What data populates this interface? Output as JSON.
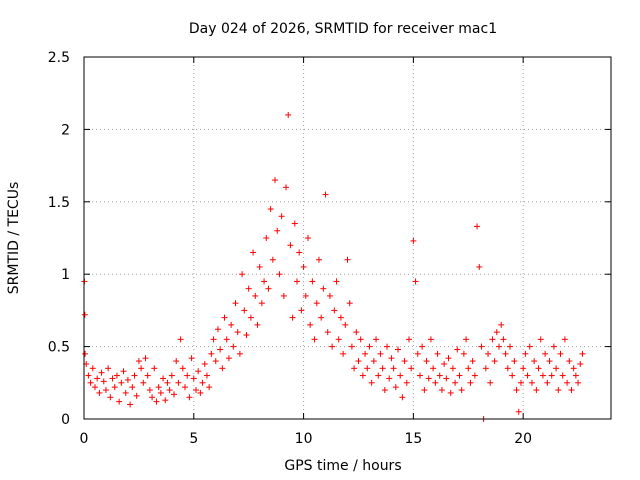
{
  "chart_data": {
    "type": "scatter",
    "title": "Day 024 of 2026, SRMTID for receiver mac1",
    "xlabel": "GPS time / hours",
    "ylabel": "SRMTID / TECUs",
    "xlim": [
      0,
      24
    ],
    "ylim": [
      0,
      2.5
    ],
    "xticks": [
      0,
      5,
      10,
      15,
      20
    ],
    "xtick_labels": [
      "0",
      "5",
      "10",
      "15",
      "20"
    ],
    "yticks": [
      0,
      0.5,
      1,
      1.5,
      2,
      2.5
    ],
    "ytick_labels": [
      "0",
      "0.5",
      "1",
      "1.5",
      "2",
      "2.5"
    ],
    "grid": true,
    "marker": "+",
    "series": [
      {
        "name": "SRMTID",
        "color": "#ff0000",
        "points": [
          [
            0.02,
            0.95
          ],
          [
            0.04,
            0.72
          ],
          [
            0.05,
            0.45
          ],
          [
            0.1,
            0.38
          ],
          [
            0.2,
            0.3
          ],
          [
            0.3,
            0.25
          ],
          [
            0.4,
            0.35
          ],
          [
            0.5,
            0.22
          ],
          [
            0.6,
            0.28
          ],
          [
            0.7,
            0.18
          ],
          [
            0.8,
            0.32
          ],
          [
            0.9,
            0.26
          ],
          [
            1.0,
            0.2
          ],
          [
            1.1,
            0.35
          ],
          [
            1.2,
            0.15
          ],
          [
            1.3,
            0.28
          ],
          [
            1.4,
            0.22
          ],
          [
            1.5,
            0.3
          ],
          [
            1.6,
            0.12
          ],
          [
            1.7,
            0.25
          ],
          [
            1.8,
            0.33
          ],
          [
            1.9,
            0.18
          ],
          [
            2.0,
            0.27
          ],
          [
            2.1,
            0.1
          ],
          [
            2.2,
            0.22
          ],
          [
            2.3,
            0.3
          ],
          [
            2.4,
            0.16
          ],
          [
            2.5,
            0.4
          ],
          [
            2.6,
            0.35
          ],
          [
            2.7,
            0.25
          ],
          [
            2.8,
            0.42
          ],
          [
            2.9,
            0.3
          ],
          [
            3.0,
            0.2
          ],
          [
            3.1,
            0.15
          ],
          [
            3.2,
            0.35
          ],
          [
            3.3,
            0.12
          ],
          [
            3.4,
            0.22
          ],
          [
            3.5,
            0.18
          ],
          [
            3.6,
            0.28
          ],
          [
            3.7,
            0.13
          ],
          [
            3.8,
            0.25
          ],
          [
            3.9,
            0.2
          ],
          [
            4.0,
            0.3
          ],
          [
            4.1,
            0.17
          ],
          [
            4.2,
            0.4
          ],
          [
            4.3,
            0.25
          ],
          [
            4.4,
            0.55
          ],
          [
            4.5,
            0.35
          ],
          [
            4.6,
            0.22
          ],
          [
            4.7,
            0.3
          ],
          [
            4.8,
            0.15
          ],
          [
            4.9,
            0.42
          ],
          [
            5.0,
            0.28
          ],
          [
            5.1,
            0.2
          ],
          [
            5.2,
            0.33
          ],
          [
            5.3,
            0.18
          ],
          [
            5.4,
            0.25
          ],
          [
            5.5,
            0.38
          ],
          [
            5.6,
            0.3
          ],
          [
            5.7,
            0.22
          ],
          [
            5.8,
            0.45
          ],
          [
            5.9,
            0.55
          ],
          [
            6.0,
            0.4
          ],
          [
            6.1,
            0.62
          ],
          [
            6.2,
            0.48
          ],
          [
            6.3,
            0.35
          ],
          [
            6.4,
            0.7
          ],
          [
            6.5,
            0.55
          ],
          [
            6.6,
            0.42
          ],
          [
            6.7,
            0.65
          ],
          [
            6.8,
            0.5
          ],
          [
            6.9,
            0.8
          ],
          [
            7.0,
            0.6
          ],
          [
            7.1,
            0.45
          ],
          [
            7.2,
            1.0
          ],
          [
            7.3,
            0.75
          ],
          [
            7.4,
            0.58
          ],
          [
            7.5,
            0.9
          ],
          [
            7.6,
            0.7
          ],
          [
            7.7,
            1.15
          ],
          [
            7.8,
            0.85
          ],
          [
            7.9,
            0.65
          ],
          [
            8.0,
            1.05
          ],
          [
            8.1,
            0.8
          ],
          [
            8.2,
            0.95
          ],
          [
            8.3,
            1.25
          ],
          [
            8.4,
            0.9
          ],
          [
            8.5,
            1.45
          ],
          [
            8.6,
            1.1
          ],
          [
            8.7,
            1.65
          ],
          [
            8.8,
            1.3
          ],
          [
            8.9,
            1.0
          ],
          [
            9.0,
            1.4
          ],
          [
            9.1,
            0.85
          ],
          [
            9.2,
            1.6
          ],
          [
            9.3,
            2.1
          ],
          [
            9.4,
            1.2
          ],
          [
            9.5,
            0.7
          ],
          [
            9.6,
            1.35
          ],
          [
            9.7,
            0.95
          ],
          [
            9.8,
            1.15
          ],
          [
            9.9,
            0.75
          ],
          [
            10.0,
            1.05
          ],
          [
            10.1,
            0.85
          ],
          [
            10.2,
            1.25
          ],
          [
            10.3,
            0.65
          ],
          [
            10.4,
            0.95
          ],
          [
            10.5,
            0.55
          ],
          [
            10.6,
            0.8
          ],
          [
            10.7,
            1.1
          ],
          [
            10.8,
            0.7
          ],
          [
            10.9,
            0.9
          ],
          [
            11.0,
            1.55
          ],
          [
            11.1,
            0.6
          ],
          [
            11.2,
            0.85
          ],
          [
            11.3,
            0.5
          ],
          [
            11.4,
            0.75
          ],
          [
            11.5,
            0.95
          ],
          [
            11.6,
            0.55
          ],
          [
            11.7,
            0.7
          ],
          [
            11.8,
            0.45
          ],
          [
            11.9,
            0.65
          ],
          [
            12.0,
            1.1
          ],
          [
            12.1,
            0.8
          ],
          [
            12.2,
            0.5
          ],
          [
            12.3,
            0.35
          ],
          [
            12.4,
            0.6
          ],
          [
            12.5,
            0.4
          ],
          [
            12.6,
            0.55
          ],
          [
            12.7,
            0.3
          ],
          [
            12.8,
            0.45
          ],
          [
            12.9,
            0.35
          ],
          [
            13.0,
            0.5
          ],
          [
            13.1,
            0.25
          ],
          [
            13.2,
            0.4
          ],
          [
            13.3,
            0.55
          ],
          [
            13.4,
            0.3
          ],
          [
            13.5,
            0.45
          ],
          [
            13.6,
            0.35
          ],
          [
            13.7,
            0.2
          ],
          [
            13.8,
            0.5
          ],
          [
            13.9,
            0.28
          ],
          [
            14.0,
            0.42
          ],
          [
            14.1,
            0.35
          ],
          [
            14.2,
            0.22
          ],
          [
            14.3,
            0.48
          ],
          [
            14.4,
            0.3
          ],
          [
            14.5,
            0.15
          ],
          [
            14.6,
            0.4
          ],
          [
            14.7,
            0.25
          ],
          [
            14.8,
            0.55
          ],
          [
            14.9,
            0.35
          ],
          [
            15.0,
            1.23
          ],
          [
            15.1,
            0.95
          ],
          [
            15.2,
            0.45
          ],
          [
            15.3,
            0.3
          ],
          [
            15.4,
            0.5
          ],
          [
            15.5,
            0.2
          ],
          [
            15.6,
            0.4
          ],
          [
            15.7,
            0.28
          ],
          [
            15.8,
            0.55
          ],
          [
            15.9,
            0.35
          ],
          [
            16.0,
            0.25
          ],
          [
            16.1,
            0.45
          ],
          [
            16.2,
            0.3
          ],
          [
            16.3,
            0.2
          ],
          [
            16.4,
            0.38
          ],
          [
            16.5,
            0.28
          ],
          [
            16.6,
            0.42
          ],
          [
            16.7,
            0.18
          ],
          [
            16.8,
            0.35
          ],
          [
            16.9,
            0.25
          ],
          [
            17.0,
            0.48
          ],
          [
            17.1,
            0.3
          ],
          [
            17.2,
            0.2
          ],
          [
            17.3,
            0.45
          ],
          [
            17.4,
            0.55
          ],
          [
            17.5,
            0.35
          ],
          [
            17.6,
            0.25
          ],
          [
            17.7,
            0.4
          ],
          [
            17.8,
            0.3
          ],
          [
            17.9,
            1.33
          ],
          [
            18.0,
            1.05
          ],
          [
            18.1,
            0.5
          ],
          [
            18.2,
            0.0
          ],
          [
            18.3,
            0.35
          ],
          [
            18.4,
            0.45
          ],
          [
            18.5,
            0.25
          ],
          [
            18.6,
            0.55
          ],
          [
            18.7,
            0.4
          ],
          [
            18.8,
            0.6
          ],
          [
            18.9,
            0.5
          ],
          [
            19.0,
            0.65
          ],
          [
            19.1,
            0.55
          ],
          [
            19.2,
            0.45
          ],
          [
            19.3,
            0.35
          ],
          [
            19.4,
            0.5
          ],
          [
            19.5,
            0.3
          ],
          [
            19.6,
            0.4
          ],
          [
            19.7,
            0.2
          ],
          [
            19.8,
            0.05
          ],
          [
            19.9,
            0.25
          ],
          [
            20.0,
            0.35
          ],
          [
            20.1,
            0.45
          ],
          [
            20.2,
            0.3
          ],
          [
            20.3,
            0.5
          ],
          [
            20.4,
            0.25
          ],
          [
            20.5,
            0.4
          ],
          [
            20.6,
            0.2
          ],
          [
            20.7,
            0.35
          ],
          [
            20.8,
            0.55
          ],
          [
            20.9,
            0.3
          ],
          [
            21.0,
            0.45
          ],
          [
            21.1,
            0.25
          ],
          [
            21.2,
            0.4
          ],
          [
            21.3,
            0.3
          ],
          [
            21.4,
            0.5
          ],
          [
            21.5,
            0.35
          ],
          [
            21.6,
            0.2
          ],
          [
            21.7,
            0.45
          ],
          [
            21.8,
            0.3
          ],
          [
            21.9,
            0.55
          ],
          [
            22.0,
            0.25
          ],
          [
            22.1,
            0.4
          ],
          [
            22.2,
            0.2
          ],
          [
            22.3,
            0.35
          ],
          [
            22.4,
            0.3
          ],
          [
            22.5,
            0.25
          ],
          [
            22.6,
            0.38
          ],
          [
            22.7,
            0.45
          ]
        ]
      }
    ]
  }
}
